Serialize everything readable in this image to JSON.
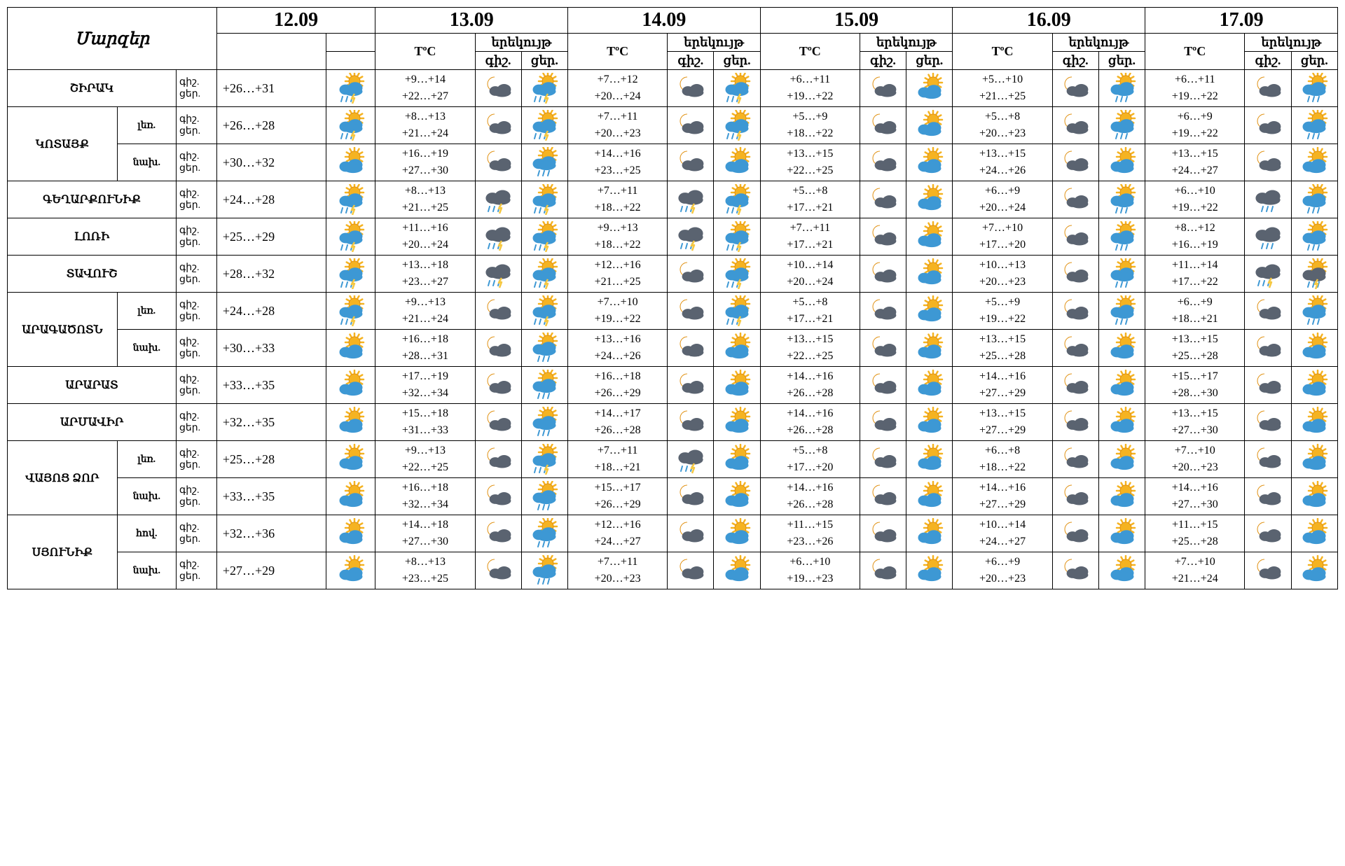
{
  "labels": {
    "regions": "Մարզեր",
    "tempC": "TºC",
    "evening": "երեկույթ",
    "night": "գիշ.",
    "day": "ցեր."
  },
  "dates": [
    "12.09",
    "13.09",
    "14.09",
    "15.09",
    "16.09",
    "17.09"
  ],
  "icon_colors": {
    "sun": "#f5b321",
    "sun_dark": "#e09010",
    "cloud_dark": "#5a6370",
    "cloud_light": "#3d98d4",
    "moon": "#f5b321",
    "rain": "#3d98d4",
    "lightning": "#f5c842"
  },
  "icons": {
    "sun_cloud_rain_storm": "storm",
    "sun_cloud_rain": "sun_rain",
    "sun_cloud": "sun_cloud",
    "moon_cloud": "moon_cloud",
    "moon_cloud_storm": "moon_storm",
    "dark_cloud_rain": "dark_rain",
    "dark_cloud_storm": "dark_storm",
    "sun_cloud_dark_rain": "sun_dark_rain"
  },
  "rows": [
    {
      "name": "ՇԻՐԱԿ",
      "subs": null,
      "d12": {
        "temp": "+26…+31",
        "icon": "storm"
      },
      "rest": [
        {
          "n": "+9…+14",
          "d": "+22…+27",
          "in": "moon_cloud",
          "id": "storm"
        },
        {
          "n": "+7…+12",
          "d": "+20…+24",
          "in": "moon_cloud",
          "id": "storm"
        },
        {
          "n": "+6…+11",
          "d": "+19…+22",
          "in": "moon_cloud",
          "id": "sun_cloud"
        },
        {
          "n": "+5…+10",
          "d": "+21…+25",
          "in": "moon_cloud",
          "id": "sun_rain"
        },
        {
          "n": "+6…+11",
          "d": "+19…+22",
          "in": "moon_cloud",
          "id": "sun_rain"
        }
      ]
    },
    {
      "name": "ԿՈՏԱՅՔ",
      "subs": [
        {
          "sub": "լեռ.",
          "d12": {
            "temp": "+26…+28",
            "icon": "storm"
          },
          "rest": [
            {
              "n": "+8…+13",
              "d": "+21…+24",
              "in": "moon_cloud",
              "id": "storm"
            },
            {
              "n": "+7…+11",
              "d": "+20…+23",
              "in": "moon_cloud",
              "id": "storm"
            },
            {
              "n": "+5…+9",
              "d": "+18…+22",
              "in": "moon_cloud",
              "id": "sun_cloud"
            },
            {
              "n": "+5…+8",
              "d": "+20…+23",
              "in": "moon_cloud",
              "id": "sun_rain"
            },
            {
              "n": "+6…+9",
              "d": "+19…+22",
              "in": "moon_cloud",
              "id": "sun_rain"
            }
          ]
        },
        {
          "sub": "նախ.",
          "d12": {
            "temp": "+30…+32",
            "icon": "sun_cloud"
          },
          "rest": [
            {
              "n": "+16…+19",
              "d": "+27…+30",
              "in": "moon_cloud",
              "id": "sun_rain"
            },
            {
              "n": "+14…+16",
              "d": "+23…+25",
              "in": "moon_cloud",
              "id": "sun_cloud"
            },
            {
              "n": "+13…+15",
              "d": "+22…+25",
              "in": "moon_cloud",
              "id": "sun_cloud"
            },
            {
              "n": "+13…+15",
              "d": "+24…+26",
              "in": "moon_cloud",
              "id": "sun_cloud"
            },
            {
              "n": "+13…+15",
              "d": "+24…+27",
              "in": "moon_cloud",
              "id": "sun_cloud"
            }
          ]
        }
      ]
    },
    {
      "name": "ԳԵՂԱՐՔՈՒՆԻՔ",
      "subs": null,
      "d12": {
        "temp": "+24…+28",
        "icon": "storm"
      },
      "rest": [
        {
          "n": "+8…+13",
          "d": "+21…+25",
          "in": "dark_storm",
          "id": "storm"
        },
        {
          "n": "+7…+11",
          "d": "+18…+22",
          "in": "dark_storm",
          "id": "storm"
        },
        {
          "n": "+5…+8",
          "d": "+17…+21",
          "in": "moon_cloud",
          "id": "sun_cloud"
        },
        {
          "n": "+6…+9",
          "d": "+20…+24",
          "in": "moon_cloud",
          "id": "sun_rain"
        },
        {
          "n": "+6…+10",
          "d": "+19…+22",
          "in": "dark_rain",
          "id": "sun_rain"
        }
      ]
    },
    {
      "name": "ԼՈՌԻ",
      "subs": null,
      "d12": {
        "temp": "+25…+29",
        "icon": "storm"
      },
      "rest": [
        {
          "n": "+11…+16",
          "d": "+20…+24",
          "in": "dark_storm",
          "id": "storm"
        },
        {
          "n": "+9…+13",
          "d": "+18…+22",
          "in": "dark_storm",
          "id": "storm"
        },
        {
          "n": "+7…+11",
          "d": "+17…+21",
          "in": "moon_cloud",
          "id": "sun_cloud"
        },
        {
          "n": "+7…+10",
          "d": "+17…+20",
          "in": "moon_cloud",
          "id": "sun_rain"
        },
        {
          "n": "+8…+12",
          "d": "+16…+19",
          "in": "dark_rain",
          "id": "sun_rain"
        }
      ]
    },
    {
      "name": "ՏԱՎՈՒՇ",
      "subs": null,
      "d12": {
        "temp": "+28…+32",
        "icon": "storm"
      },
      "rest": [
        {
          "n": "+13…+18",
          "d": "+23…+27",
          "in": "dark_storm",
          "id": "storm"
        },
        {
          "n": "+12…+16",
          "d": "+21…+25",
          "in": "moon_cloud",
          "id": "storm"
        },
        {
          "n": "+10…+14",
          "d": "+20…+24",
          "in": "moon_cloud",
          "id": "sun_cloud"
        },
        {
          "n": "+10…+13",
          "d": "+20…+23",
          "in": "moon_cloud",
          "id": "sun_rain"
        },
        {
          "n": "+11…+14",
          "d": "+17…+22",
          "in": "dark_storm",
          "id": "sun_dark_rain"
        }
      ]
    },
    {
      "name": "ԱՐԱԳԱԾՈՏՆ",
      "subs": [
        {
          "sub": "լեռ.",
          "d12": {
            "temp": "+24…+28",
            "icon": "storm"
          },
          "rest": [
            {
              "n": "+9…+13",
              "d": "+21…+24",
              "in": "moon_cloud",
              "id": "storm"
            },
            {
              "n": "+7…+10",
              "d": "+19…+22",
              "in": "moon_cloud",
              "id": "storm"
            },
            {
              "n": "+5…+8",
              "d": "+17…+21",
              "in": "moon_cloud",
              "id": "sun_cloud"
            },
            {
              "n": "+5…+9",
              "d": "+19…+22",
              "in": "moon_cloud",
              "id": "sun_rain"
            },
            {
              "n": "+6…+9",
              "d": "+18…+21",
              "in": "moon_cloud",
              "id": "sun_rain"
            }
          ]
        },
        {
          "sub": "նախ.",
          "d12": {
            "temp": "+30…+33",
            "icon": "sun_cloud"
          },
          "rest": [
            {
              "n": "+16…+18",
              "d": "+28…+31",
              "in": "moon_cloud",
              "id": "sun_rain"
            },
            {
              "n": "+13…+16",
              "d": "+24…+26",
              "in": "moon_cloud",
              "id": "sun_cloud"
            },
            {
              "n": "+13…+15",
              "d": "+22…+25",
              "in": "moon_cloud",
              "id": "sun_cloud"
            },
            {
              "n": "+13…+15",
              "d": "+25…+28",
              "in": "moon_cloud",
              "id": "sun_cloud"
            },
            {
              "n": "+13…+15",
              "d": "+25…+28",
              "in": "moon_cloud",
              "id": "sun_cloud"
            }
          ]
        }
      ]
    },
    {
      "name": "ԱՐԱՐԱՏ",
      "subs": null,
      "d12": {
        "temp": "+33…+35",
        "icon": "sun_cloud"
      },
      "rest": [
        {
          "n": "+17…+19",
          "d": "+32…+34",
          "in": "moon_cloud",
          "id": "sun_rain"
        },
        {
          "n": "+16…+18",
          "d": "+26…+29",
          "in": "moon_cloud",
          "id": "sun_cloud"
        },
        {
          "n": "+14…+16",
          "d": "+26…+28",
          "in": "moon_cloud",
          "id": "sun_cloud"
        },
        {
          "n": "+14…+16",
          "d": "+27…+29",
          "in": "moon_cloud",
          "id": "sun_cloud"
        },
        {
          "n": "+15…+17",
          "d": "+28…+30",
          "in": "moon_cloud",
          "id": "sun_cloud"
        }
      ]
    },
    {
      "name": "ԱՐՄԱՎԻՐ",
      "subs": null,
      "d12": {
        "temp": "+32…+35",
        "icon": "sun_cloud"
      },
      "rest": [
        {
          "n": "+15…+18",
          "d": "+31…+33",
          "in": "moon_cloud",
          "id": "sun_rain"
        },
        {
          "n": "+14…+17",
          "d": "+26…+28",
          "in": "moon_cloud",
          "id": "sun_cloud"
        },
        {
          "n": "+14…+16",
          "d": "+26…+28",
          "in": "moon_cloud",
          "id": "sun_cloud"
        },
        {
          "n": "+13…+15",
          "d": "+27…+29",
          "in": "moon_cloud",
          "id": "sun_cloud"
        },
        {
          "n": "+13…+15",
          "d": "+27…+30",
          "in": "moon_cloud",
          "id": "sun_cloud"
        }
      ]
    },
    {
      "name": "ՎԱՅՈՑ ՁՈՐ",
      "subs": [
        {
          "sub": "լեռ.",
          "d12": {
            "temp": "+25…+28",
            "icon": "sun_cloud"
          },
          "rest": [
            {
              "n": "+9…+13",
              "d": "+22…+25",
              "in": "moon_cloud",
              "id": "storm"
            },
            {
              "n": "+7…+11",
              "d": "+18…+21",
              "in": "dark_storm",
              "id": "sun_cloud"
            },
            {
              "n": "+5…+8",
              "d": "+17…+20",
              "in": "moon_cloud",
              "id": "sun_cloud"
            },
            {
              "n": "+6…+8",
              "d": "+18…+22",
              "in": "moon_cloud",
              "id": "sun_cloud"
            },
            {
              "n": "+7…+10",
              "d": "+20…+23",
              "in": "moon_cloud",
              "id": "sun_cloud"
            }
          ]
        },
        {
          "sub": "նախ.",
          "d12": {
            "temp": "+33…+35",
            "icon": "sun_cloud"
          },
          "rest": [
            {
              "n": "+16…+18",
              "d": "+32…+34",
              "in": "moon_cloud",
              "id": "sun_rain"
            },
            {
              "n": "+15…+17",
              "d": "+26…+29",
              "in": "moon_cloud",
              "id": "sun_cloud"
            },
            {
              "n": "+14…+16",
              "d": "+26…+28",
              "in": "moon_cloud",
              "id": "sun_cloud"
            },
            {
              "n": "+14…+16",
              "d": "+27…+29",
              "in": "moon_cloud",
              "id": "sun_cloud"
            },
            {
              "n": "+14…+16",
              "d": "+27…+30",
              "in": "moon_cloud",
              "id": "sun_cloud"
            }
          ]
        }
      ]
    },
    {
      "name": "ՍՅՈՒՆԻՔ",
      "subs": [
        {
          "sub": "հով.",
          "d12": {
            "temp": "+32…+36",
            "icon": "sun_cloud"
          },
          "rest": [
            {
              "n": "+14…+18",
              "d": "+27…+30",
              "in": "moon_cloud",
              "id": "sun_rain"
            },
            {
              "n": "+12…+16",
              "d": "+24…+27",
              "in": "moon_cloud",
              "id": "sun_cloud"
            },
            {
              "n": "+11…+15",
              "d": "+23…+26",
              "in": "moon_cloud",
              "id": "sun_cloud"
            },
            {
              "n": "+10…+14",
              "d": "+24…+27",
              "in": "moon_cloud",
              "id": "sun_cloud"
            },
            {
              "n": "+11…+15",
              "d": "+25…+28",
              "in": "moon_cloud",
              "id": "sun_cloud"
            }
          ]
        },
        {
          "sub": "նախ.",
          "d12": {
            "temp": "+27…+29",
            "icon": "sun_cloud"
          },
          "rest": [
            {
              "n": "+8…+13",
              "d": "+23…+25",
              "in": "moon_cloud",
              "id": "sun_rain"
            },
            {
              "n": "+7…+11",
              "d": "+20…+23",
              "in": "moon_cloud",
              "id": "sun_cloud"
            },
            {
              "n": "+6…+10",
              "d": "+19…+23",
              "in": "moon_cloud",
              "id": "sun_cloud"
            },
            {
              "n": "+6…+9",
              "d": "+20…+23",
              "in": "moon_cloud",
              "id": "sun_cloud"
            },
            {
              "n": "+7…+10",
              "d": "+21…+24",
              "in": "moon_cloud",
              "id": "sun_cloud"
            }
          ]
        }
      ]
    }
  ]
}
